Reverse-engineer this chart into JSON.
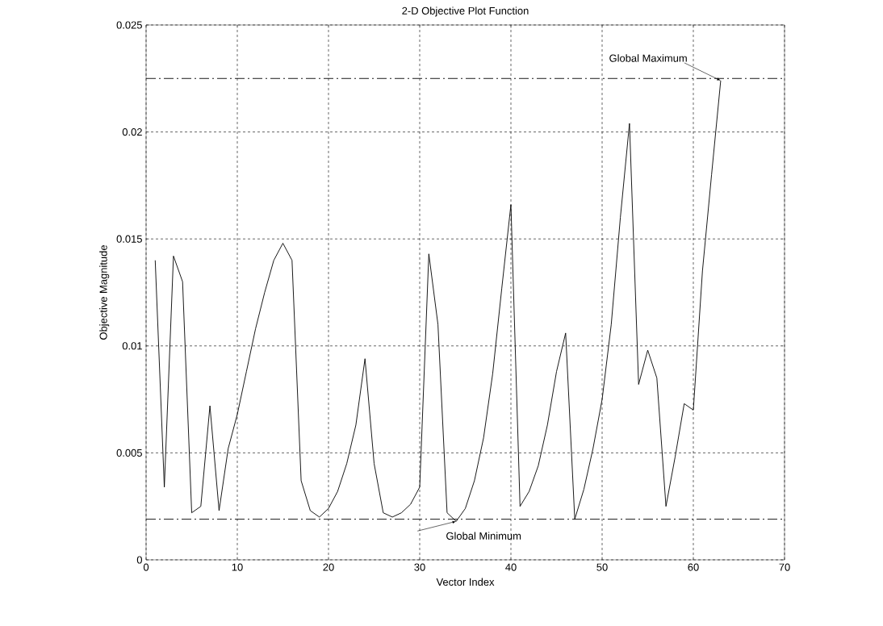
{
  "chart_data": {
    "type": "line",
    "title": "2-D Objective Plot Function",
    "xlabel": "Vector Index",
    "ylabel": "Objective Magnitude",
    "x": [
      1,
      2,
      3,
      4,
      5,
      6,
      7,
      8,
      9,
      10,
      11,
      12,
      13,
      14,
      15,
      16,
      17,
      18,
      19,
      20,
      21,
      22,
      23,
      24,
      25,
      26,
      27,
      28,
      29,
      30,
      31,
      32,
      33,
      34,
      35,
      36,
      37,
      38,
      39,
      40,
      41,
      42,
      43,
      44,
      45,
      46,
      47,
      48,
      49,
      50,
      51,
      52,
      53,
      54,
      55,
      56,
      57,
      58,
      59,
      60,
      61,
      62,
      63
    ],
    "series": [
      {
        "color": "#000000",
        "values": [
          0.014,
          0.0034,
          0.0142,
          0.013,
          0.0022,
          0.0025,
          0.0072,
          0.0023,
          0.0052,
          0.0068,
          0.0088,
          0.0108,
          0.0125,
          0.014,
          0.0148,
          0.014,
          0.0037,
          0.0023,
          0.002,
          0.0024,
          0.0032,
          0.0045,
          0.0063,
          0.0094,
          0.0045,
          0.0022,
          0.002,
          0.0022,
          0.0026,
          0.0034,
          0.0143,
          0.011,
          0.0022,
          0.0018,
          0.0024,
          0.0037,
          0.0057,
          0.0087,
          0.0127,
          0.0166,
          0.0025,
          0.0032,
          0.0044,
          0.0063,
          0.0088,
          0.0106,
          0.0019,
          0.0033,
          0.0052,
          0.0075,
          0.011,
          0.016,
          0.0204,
          0.0082,
          0.0098,
          0.0085,
          0.0025,
          0.0048,
          0.0073,
          0.007,
          0.0135,
          0.018,
          0.0224
        ]
      }
    ],
    "xlim": [
      0,
      70
    ],
    "ylim": [
      0,
      0.025
    ],
    "xticks": [
      0,
      10,
      20,
      30,
      40,
      50,
      60,
      70
    ],
    "yticks": [
      0,
      0.005,
      0.01,
      0.015,
      0.02,
      0.025
    ],
    "grid": true,
    "marker": "none",
    "line_style": "solid",
    "ref_lines": [
      {
        "axis": "y",
        "value": 0.0225,
        "line_style": "dashdot",
        "color": "#000000"
      },
      {
        "axis": "y",
        "value": 0.0019,
        "line_style": "dashdot",
        "color": "#000000"
      }
    ],
    "annotations": [
      {
        "text": "Global Maximum",
        "x": 63,
        "y": 0.0224
      },
      {
        "text": "Global Minimum",
        "x": 34,
        "y": 0.0018
      }
    ]
  }
}
